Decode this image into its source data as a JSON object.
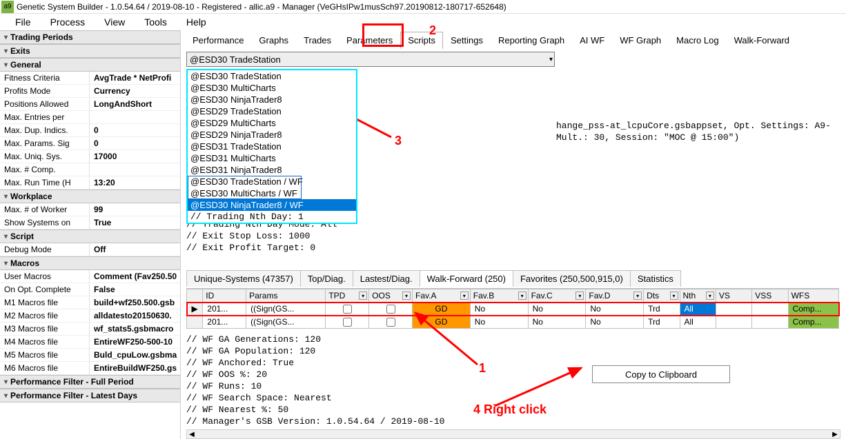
{
  "window": {
    "icon_text": "a9",
    "title": "Genetic System Builder - 1.0.54.64 / 2019-08-10 - Registered - allic.a9 - Manager (VeGHsIPw1musSch97.20190812-180717-652648)"
  },
  "menubar": [
    "File",
    "Process",
    "View",
    "Tools",
    "Help"
  ],
  "sidebar_groups": [
    {
      "title": "Trading Periods",
      "rows": []
    },
    {
      "title": "Exits",
      "rows": []
    },
    {
      "title": "General",
      "rows": [
        {
          "label": "Fitness Criteria",
          "value": "AvgTrade * NetProfi"
        },
        {
          "label": "Profits Mode",
          "value": "Currency"
        },
        {
          "label": "Positions Allowed",
          "value": "LongAndShort"
        },
        {
          "label": "Max. Entries per",
          "value": ""
        },
        {
          "label": "Max. Dup. Indics.",
          "value": "0"
        },
        {
          "label": "Max. Params. Sig",
          "value": "0"
        },
        {
          "label": "Max. Uniq. Sys.",
          "value": "17000"
        },
        {
          "label": "Max. # Comp.",
          "value": ""
        },
        {
          "label": "Max. Run Time (H",
          "value": "13:20"
        }
      ]
    },
    {
      "title": "Workplace",
      "rows": [
        {
          "label": "Max. # of Worker",
          "value": "99"
        },
        {
          "label": "Show Systems on",
          "value": "True"
        }
      ]
    },
    {
      "title": "Script",
      "rows": [
        {
          "label": "Debug Mode",
          "value": "Off"
        }
      ]
    },
    {
      "title": "Macros",
      "rows": [
        {
          "label": "User Macros",
          "value": "Comment (Fav250.50"
        },
        {
          "label": "On Opt. Complete",
          "value": "False"
        },
        {
          "label": "M1 Macros file",
          "value": "build+wf250.500.gsb"
        },
        {
          "label": "M2 Macros file",
          "value": "alldatesto20150630."
        },
        {
          "label": "M3 Macros file",
          "value": "wf_stats5.gsbmacro"
        },
        {
          "label": "M4 Macros file",
          "value": "EntireWF250-500-10"
        },
        {
          "label": "M5 Macros file",
          "value": "Buld_cpuLow.gsbma"
        },
        {
          "label": "M6 Macros file",
          "value": "EntireBuildWF250.gs"
        }
      ]
    },
    {
      "title": "Performance Filter - Full Period",
      "rows": []
    },
    {
      "title": "Performance Filter - Latest Days",
      "rows": []
    }
  ],
  "content_tabs": [
    "Performance",
    "Graphs",
    "Trades",
    "Parameters",
    "Scripts",
    "Settings",
    "Reporting Graph",
    "AI WF",
    "WF Graph",
    "Macro Log",
    "Walk-Forward"
  ],
  "content_active_tab": "Scripts",
  "combo_selected": "@ESD30 TradeStation",
  "dropdown_items": [
    "@ESD30 TradeStation",
    "@ESD30 MultiCharts",
    "@ESD30 NinjaTrader8",
    "@ESD29 TradeStation",
    "@ESD29 MultiCharts",
    "@ESD29 NinjaTrader8",
    "@ESD31 TradeStation",
    "@ESD31 MultiCharts",
    "@ESD31 NinjaTrader8",
    "@ESD30 TradeStation / WF",
    "@ESD30 MultiCharts / WF",
    "@ESD30 NinjaTrader8 / WF"
  ],
  "dropdown_selected_index": 11,
  "dropdown_below": "// Trading Nth Day: 1",
  "code_right": "hange_pss-at_lcpuCore.gsbappset, Opt. Settings: A9-\nMult.: 30, Session: \"MOC @ 15:00\")",
  "code_lower": "// Trading Nth Day Mode: All\n// Exit Stop Loss: 1000\n// Exit Profit Target: 0",
  "result_tabs": [
    {
      "label": "Unique-Systems (47357)"
    },
    {
      "label": "Top/Diag."
    },
    {
      "label": "Lastest/Diag."
    },
    {
      "label": "Walk-Forward (250)"
    },
    {
      "label": "Favorites (250,500,915,0)"
    },
    {
      "label": "Statistics"
    }
  ],
  "result_active_index": 3,
  "grid": {
    "columns": [
      "",
      "ID",
      "Params",
      "TPD",
      "OOS",
      "Fav.A",
      "Fav.B",
      "Fav.C",
      "Fav.D",
      "Dts",
      "Nth",
      "VS",
      "VSS",
      "WFS"
    ],
    "col_dropdown": [
      false,
      false,
      false,
      true,
      true,
      true,
      true,
      true,
      true,
      true,
      true,
      false,
      false,
      false
    ],
    "rows": [
      {
        "ptr": "▶",
        "id": "201...",
        "params": "((Sign(GS...",
        "tpd": false,
        "oos": false,
        "favA": "GD",
        "favB": "No",
        "favC": "No",
        "favD": "No",
        "dts": "Trd",
        "nth": "All",
        "nth_hl": true,
        "vs": "",
        "vss": "",
        "wfs": "Comp...",
        "highlight": true
      },
      {
        "ptr": "",
        "id": "201...",
        "params": "((Sign(GS...",
        "tpd": false,
        "oos": false,
        "favA": "GD",
        "favB": "No",
        "favC": "No",
        "favD": "No",
        "dts": "Trd",
        "nth": "All",
        "nth_hl": false,
        "vs": "",
        "vss": "",
        "wfs": "Comp...",
        "highlight": false
      }
    ]
  },
  "code_wf": "// WF GA Generations: 120\n// WF GA Population: 120\n// WF Anchored: True\n// WF OOS %: 20\n// WF Runs: 10\n// WF Search Space: Nearest\n// WF Nearest %: 50\n// Manager's GSB Version: 1.0.54.64 / 2019-08-10",
  "copy_button": "Copy to Clipboard",
  "annotations": {
    "n1": "1",
    "n2": "2",
    "n3": "3",
    "n4": "4 Right click"
  },
  "colors": {
    "accent_red": "#ff0000",
    "accent_cyan": "#00e5ff",
    "accent_blue": "#1565c0",
    "sel_blue": "#0078d7",
    "orange": "#ff9800",
    "green": "#8bc34a"
  }
}
